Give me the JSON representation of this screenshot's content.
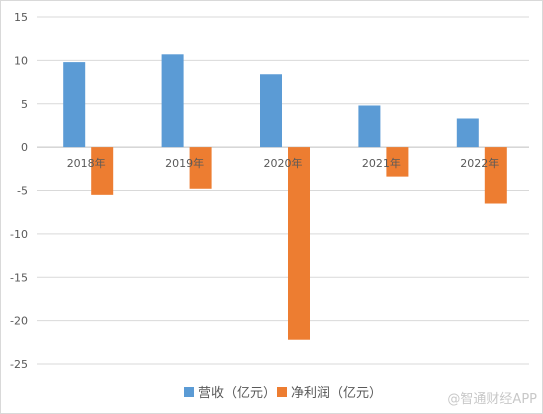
{
  "chart_data": {
    "type": "bar",
    "categories": [
      "2018年",
      "2019年",
      "2020年",
      "2021年",
      "2022年"
    ],
    "series": [
      {
        "name": "营收（亿元）",
        "values": [
          9.8,
          10.7,
          8.4,
          4.8,
          3.3
        ],
        "color": "#5b9bd5"
      },
      {
        "name": "净利润（亿元）",
        "values": [
          -5.5,
          -4.8,
          -22.2,
          -3.4,
          -6.5
        ],
        "color": "#ed7d31"
      }
    ],
    "yticks": [
      15,
      10,
      5,
      0,
      -5,
      -10,
      -15,
      -20,
      -25
    ],
    "ylim": [
      -25,
      15
    ],
    "grid": true,
    "legend_position": "bottom"
  },
  "watermark": "@智通财经APP"
}
